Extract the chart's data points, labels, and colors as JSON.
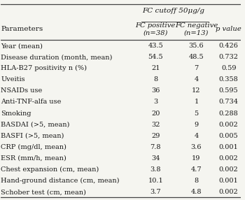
{
  "header_main": "FC cutoff 50μg/g",
  "col_headers": [
    "Parameters",
    "FC positive\n(n=38)",
    "FC negative\n(n=13)",
    "p value"
  ],
  "rows": [
    [
      "Year (mean)",
      "43.5",
      "35.6",
      "0.426"
    ],
    [
      "Disease duration (month, mean)",
      "54.5",
      "48.5",
      "0.732"
    ],
    [
      "HLA-B27 positivity n (%)",
      "21",
      "7",
      "0.59"
    ],
    [
      "Uveitis",
      "8",
      "4",
      "0.358"
    ],
    [
      "NSAIDs use",
      "36",
      "12",
      "0.595"
    ],
    [
      "Anti-TNF-alfa use",
      "3",
      "1",
      "0.734"
    ],
    [
      "Smoking",
      "20",
      "5",
      "0.288"
    ],
    [
      "BASDAI (>5, mean)",
      "32",
      "9",
      "0.002"
    ],
    [
      "BASFI (>5, mean)",
      "29",
      "4",
      "0.005"
    ],
    [
      "CRP (mg/dl, mean)",
      "7.8",
      "3.6",
      "0.001"
    ],
    [
      "ESR (mm/h, mean)",
      "34",
      "19",
      "0.002"
    ],
    [
      "Chest expansion (cm, mean)",
      "3.8",
      "4.7",
      "0.002"
    ],
    [
      "Hand-ground distance (cm, mean)",
      "10.1",
      "8",
      "0.001"
    ],
    [
      "Schober test (cm, mean)",
      "3.7",
      "4.8",
      "0.002"
    ]
  ],
  "bg_color": "#f5f5f0",
  "text_color": "#1a1a1a",
  "line_color": "#444444",
  "font_size": 7.2,
  "header_font_size": 7.5
}
